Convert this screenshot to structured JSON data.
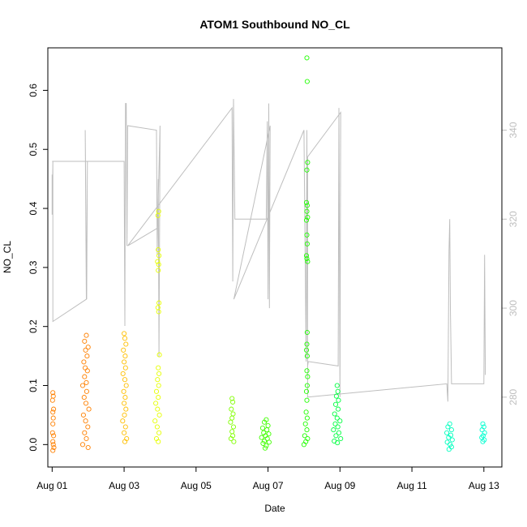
{
  "chart_data": {
    "type": "scatter",
    "title": "ATOM1 Southbound NO_CL",
    "xlabel": "Date",
    "ylabel": "NO_CL",
    "xlim": [
      -0.12,
      12.5
    ],
    "ylim": [
      -0.038,
      0.672
    ],
    "y_ticks": [
      0.0,
      0.1,
      0.2,
      0.3,
      0.4,
      0.5,
      0.6
    ],
    "y_tick_labels": [
      "0.0",
      "0.1",
      "0.2",
      "0.3",
      "0.4",
      "0.5",
      "0.6"
    ],
    "x_ticks": [
      0,
      2,
      4,
      6,
      8,
      10,
      12
    ],
    "x_tick_labels": [
      "Aug 01",
      "Aug 03",
      "Aug 05",
      "Aug 07",
      "Aug 09",
      "Aug 11",
      "Aug 13"
    ],
    "right_axis": {
      "color": "#bebebe",
      "ylim": [
        264.3,
        358.5
      ],
      "ticks": [
        280,
        300,
        320,
        340
      ],
      "tick_labels": [
        "280",
        "300",
        "320",
        "340"
      ]
    },
    "point_series": [
      {
        "color": "#ff8000",
        "x_range": [
          0.0,
          0.07
        ],
        "points": [
          [
            0.02,
            0.088
          ],
          [
            0.03,
            0.082
          ],
          [
            0.01,
            0.075
          ],
          [
            0.04,
            0.06
          ],
          [
            0.02,
            0.055
          ],
          [
            0.03,
            0.045
          ],
          [
            0.02,
            0.035
          ],
          [
            0.01,
            0.02
          ],
          [
            0.04,
            0.015
          ],
          [
            0.02,
            0.005
          ],
          [
            0.03,
            0.0
          ],
          [
            0.05,
            -0.005
          ],
          [
            0.02,
            -0.01
          ]
        ]
      },
      {
        "color": "#ff8000",
        "x_range": [
          0.78,
          1.05
        ],
        "points": [
          [
            0.95,
            0.185
          ],
          [
            0.9,
            0.175
          ],
          [
            1.0,
            0.165
          ],
          [
            0.93,
            0.16
          ],
          [
            0.97,
            0.15
          ],
          [
            0.88,
            0.14
          ],
          [
            0.92,
            0.13
          ],
          [
            0.98,
            0.125
          ],
          [
            0.9,
            0.115
          ],
          [
            0.95,
            0.105
          ],
          [
            0.85,
            0.1
          ],
          [
            0.96,
            0.09
          ],
          [
            0.89,
            0.08
          ],
          [
            0.94,
            0.07
          ],
          [
            1.02,
            0.06
          ],
          [
            0.87,
            0.05
          ],
          [
            0.93,
            0.04
          ],
          [
            0.99,
            0.03
          ],
          [
            0.9,
            0.02
          ],
          [
            0.95,
            0.01
          ],
          [
            0.85,
            0.0
          ],
          [
            1.0,
            -0.005
          ]
        ]
      },
      {
        "color": "#ffbf00",
        "x_range": [
          1.93,
          2.13
        ],
        "points": [
          [
            2.0,
            0.188
          ],
          [
            2.02,
            0.18
          ],
          [
            2.05,
            0.17
          ],
          [
            1.98,
            0.16
          ],
          [
            2.03,
            0.15
          ],
          [
            2.0,
            0.14
          ],
          [
            2.04,
            0.13
          ],
          [
            1.97,
            0.12
          ],
          [
            2.02,
            0.11
          ],
          [
            2.06,
            0.1
          ],
          [
            1.99,
            0.09
          ],
          [
            2.03,
            0.08
          ],
          [
            2.0,
            0.07
          ],
          [
            2.05,
            0.06
          ],
          [
            2.01,
            0.05
          ],
          [
            1.96,
            0.04
          ],
          [
            2.04,
            0.03
          ],
          [
            2.0,
            0.02
          ],
          [
            2.07,
            0.01
          ],
          [
            2.02,
            0.005
          ]
        ]
      },
      {
        "color": "#e6ff00",
        "x_range": [
          2.75,
          3.05
        ],
        "points": [
          [
            2.96,
            0.395
          ],
          [
            2.94,
            0.388
          ],
          [
            2.95,
            0.33
          ],
          [
            2.97,
            0.32
          ],
          [
            2.93,
            0.31
          ],
          [
            2.96,
            0.305
          ],
          [
            2.95,
            0.295
          ],
          [
            2.97,
            0.24
          ],
          [
            2.94,
            0.232
          ],
          [
            2.96,
            0.225
          ],
          [
            2.98,
            0.152
          ],
          [
            2.95,
            0.13
          ],
          [
            2.97,
            0.12
          ],
          [
            2.93,
            0.11
          ],
          [
            2.96,
            0.1
          ],
          [
            2.9,
            0.09
          ],
          [
            2.95,
            0.08
          ],
          [
            2.88,
            0.07
          ],
          [
            2.93,
            0.06
          ],
          [
            2.98,
            0.05
          ],
          [
            2.86,
            0.04
          ],
          [
            2.92,
            0.03
          ],
          [
            2.97,
            0.02
          ],
          [
            2.9,
            0.01
          ],
          [
            2.95,
            0.005
          ]
        ]
      },
      {
        "color": "#80ff00",
        "x_range": [
          4.93,
          5.1
        ],
        "points": [
          [
            5.0,
            0.078
          ],
          [
            5.02,
            0.072
          ],
          [
            4.98,
            0.06
          ],
          [
            5.03,
            0.052
          ],
          [
            5.0,
            0.045
          ],
          [
            4.96,
            0.038
          ],
          [
            5.04,
            0.03
          ],
          [
            5.0,
            0.022
          ],
          [
            5.02,
            0.015
          ],
          [
            4.97,
            0.01
          ],
          [
            5.05,
            0.005
          ]
        ]
      },
      {
        "color": "#40ff00",
        "x_range": [
          5.77,
          6.07
        ],
        "points": [
          [
            5.95,
            0.042
          ],
          [
            5.9,
            0.038
          ],
          [
            6.0,
            0.032
          ],
          [
            5.85,
            0.028
          ],
          [
            5.97,
            0.025
          ],
          [
            5.88,
            0.02
          ],
          [
            6.02,
            0.018
          ],
          [
            5.93,
            0.015
          ],
          [
            5.82,
            0.012
          ],
          [
            5.98,
            0.01
          ],
          [
            5.9,
            0.006
          ],
          [
            6.03,
            0.004
          ],
          [
            5.86,
            0.002
          ],
          [
            5.95,
            -0.002
          ],
          [
            5.92,
            -0.006
          ]
        ]
      },
      {
        "color": "#20ff00",
        "x_range": [
          6.97,
          7.13
        ],
        "points": [
          [
            7.08,
            0.655
          ],
          [
            7.09,
            0.615
          ],
          [
            7.1,
            0.478
          ],
          [
            7.08,
            0.465
          ],
          [
            7.07,
            0.41
          ],
          [
            7.09,
            0.405
          ],
          [
            7.08,
            0.395
          ],
          [
            7.1,
            0.385
          ],
          [
            7.07,
            0.38
          ],
          [
            7.08,
            0.355
          ],
          [
            7.09,
            0.34
          ],
          [
            7.07,
            0.32
          ],
          [
            7.08,
            0.315
          ],
          [
            7.1,
            0.31
          ],
          [
            7.09,
            0.19
          ],
          [
            7.08,
            0.17
          ],
          [
            7.07,
            0.16
          ],
          [
            7.09,
            0.15
          ],
          [
            7.08,
            0.125
          ],
          [
            7.1,
            0.115
          ],
          [
            7.09,
            0.1
          ],
          [
            7.07,
            0.09
          ],
          [
            7.08,
            0.075
          ],
          [
            7.06,
            0.055
          ],
          [
            7.09,
            0.045
          ],
          [
            7.04,
            0.035
          ],
          [
            7.08,
            0.025
          ],
          [
            7.02,
            0.015
          ],
          [
            7.1,
            0.01
          ],
          [
            7.05,
            0.005
          ],
          [
            7.0,
            0.0
          ]
        ]
      },
      {
        "color": "#00ff40",
        "x_range": [
          7.77,
          8.07
        ],
        "points": [
          [
            7.92,
            0.1
          ],
          [
            7.94,
            0.09
          ],
          [
            7.9,
            0.082
          ],
          [
            7.96,
            0.075
          ],
          [
            7.88,
            0.068
          ],
          [
            7.95,
            0.06
          ],
          [
            7.85,
            0.052
          ],
          [
            7.92,
            0.045
          ],
          [
            8.0,
            0.04
          ],
          [
            7.87,
            0.035
          ],
          [
            7.94,
            0.03
          ],
          [
            7.82,
            0.025
          ],
          [
            7.97,
            0.02
          ],
          [
            7.89,
            0.015
          ],
          [
            8.02,
            0.01
          ],
          [
            7.84,
            0.006
          ],
          [
            7.93,
            0.003
          ]
        ]
      },
      {
        "color": "#00ffbf",
        "x_range": [
          10.93,
          11.17
        ],
        "points": [
          [
            11.05,
            0.035
          ],
          [
            11.0,
            0.03
          ],
          [
            11.1,
            0.025
          ],
          [
            10.97,
            0.02
          ],
          [
            11.08,
            0.016
          ],
          [
            11.02,
            0.012
          ],
          [
            11.12,
            0.008
          ],
          [
            10.98,
            0.004
          ],
          [
            11.06,
            0.0
          ],
          [
            11.1,
            -0.004
          ],
          [
            11.03,
            -0.008
          ]
        ]
      },
      {
        "color": "#00ffd0",
        "x_range": [
          11.92,
          12.05
        ],
        "points": [
          [
            11.97,
            0.035
          ],
          [
            12.0,
            0.03
          ],
          [
            11.95,
            0.025
          ],
          [
            12.02,
            0.02
          ],
          [
            11.98,
            0.015
          ],
          [
            11.94,
            0.012
          ],
          [
            12.01,
            0.008
          ],
          [
            11.97,
            0.005
          ]
        ]
      }
    ],
    "line_series": {
      "color": "#bebebe",
      "axis": "right",
      "points": [
        [
          0.0,
          330
        ],
        [
          0.0,
          321
        ],
        [
          0.02,
          333
        ],
        [
          0.02,
          297
        ],
        [
          0.95,
          302
        ],
        [
          0.92,
          340
        ],
        [
          0.96,
          302
        ],
        [
          0.98,
          333
        ],
        [
          0.0,
          333
        ],
        [
          1.0,
          333
        ],
        [
          2.0,
          333
        ],
        [
          2.02,
          296
        ],
        [
          2.04,
          346
        ],
        [
          2.06,
          346
        ],
        [
          2.08,
          314
        ],
        [
          2.1,
          341
        ],
        [
          2.9,
          340
        ],
        [
          2.92,
          312
        ],
        [
          2.95,
          329
        ],
        [
          2.97,
          289
        ],
        [
          3.0,
          341
        ],
        [
          2.93,
          318
        ],
        [
          2.1,
          314
        ],
        [
          5.0,
          345
        ],
        [
          5.02,
          306
        ],
        [
          5.04,
          347
        ],
        [
          5.08,
          320
        ],
        [
          5.95,
          320
        ],
        [
          5.98,
          342
        ],
        [
          6.0,
          302
        ],
        [
          6.02,
          346
        ],
        [
          6.04,
          300
        ],
        [
          6.06,
          341
        ],
        [
          5.05,
          302
        ],
        [
          7.0,
          340
        ],
        [
          7.06,
          288
        ],
        [
          7.08,
          340
        ],
        [
          7.1,
          287
        ],
        [
          7.12,
          288
        ],
        [
          7.95,
          287
        ],
        [
          7.97,
          345
        ],
        [
          8.0,
          280
        ],
        [
          8.02,
          344
        ],
        [
          7.1,
          334
        ],
        [
          7.1,
          280
        ],
        [
          10.97,
          283
        ],
        [
          11.0,
          279
        ],
        [
          11.03,
          313
        ],
        [
          11.05,
          320
        ],
        [
          11.07,
          300
        ],
        [
          11.1,
          283
        ],
        [
          12.0,
          283
        ],
        [
          12.02,
          312
        ],
        [
          12.04,
          285
        ]
      ]
    }
  }
}
